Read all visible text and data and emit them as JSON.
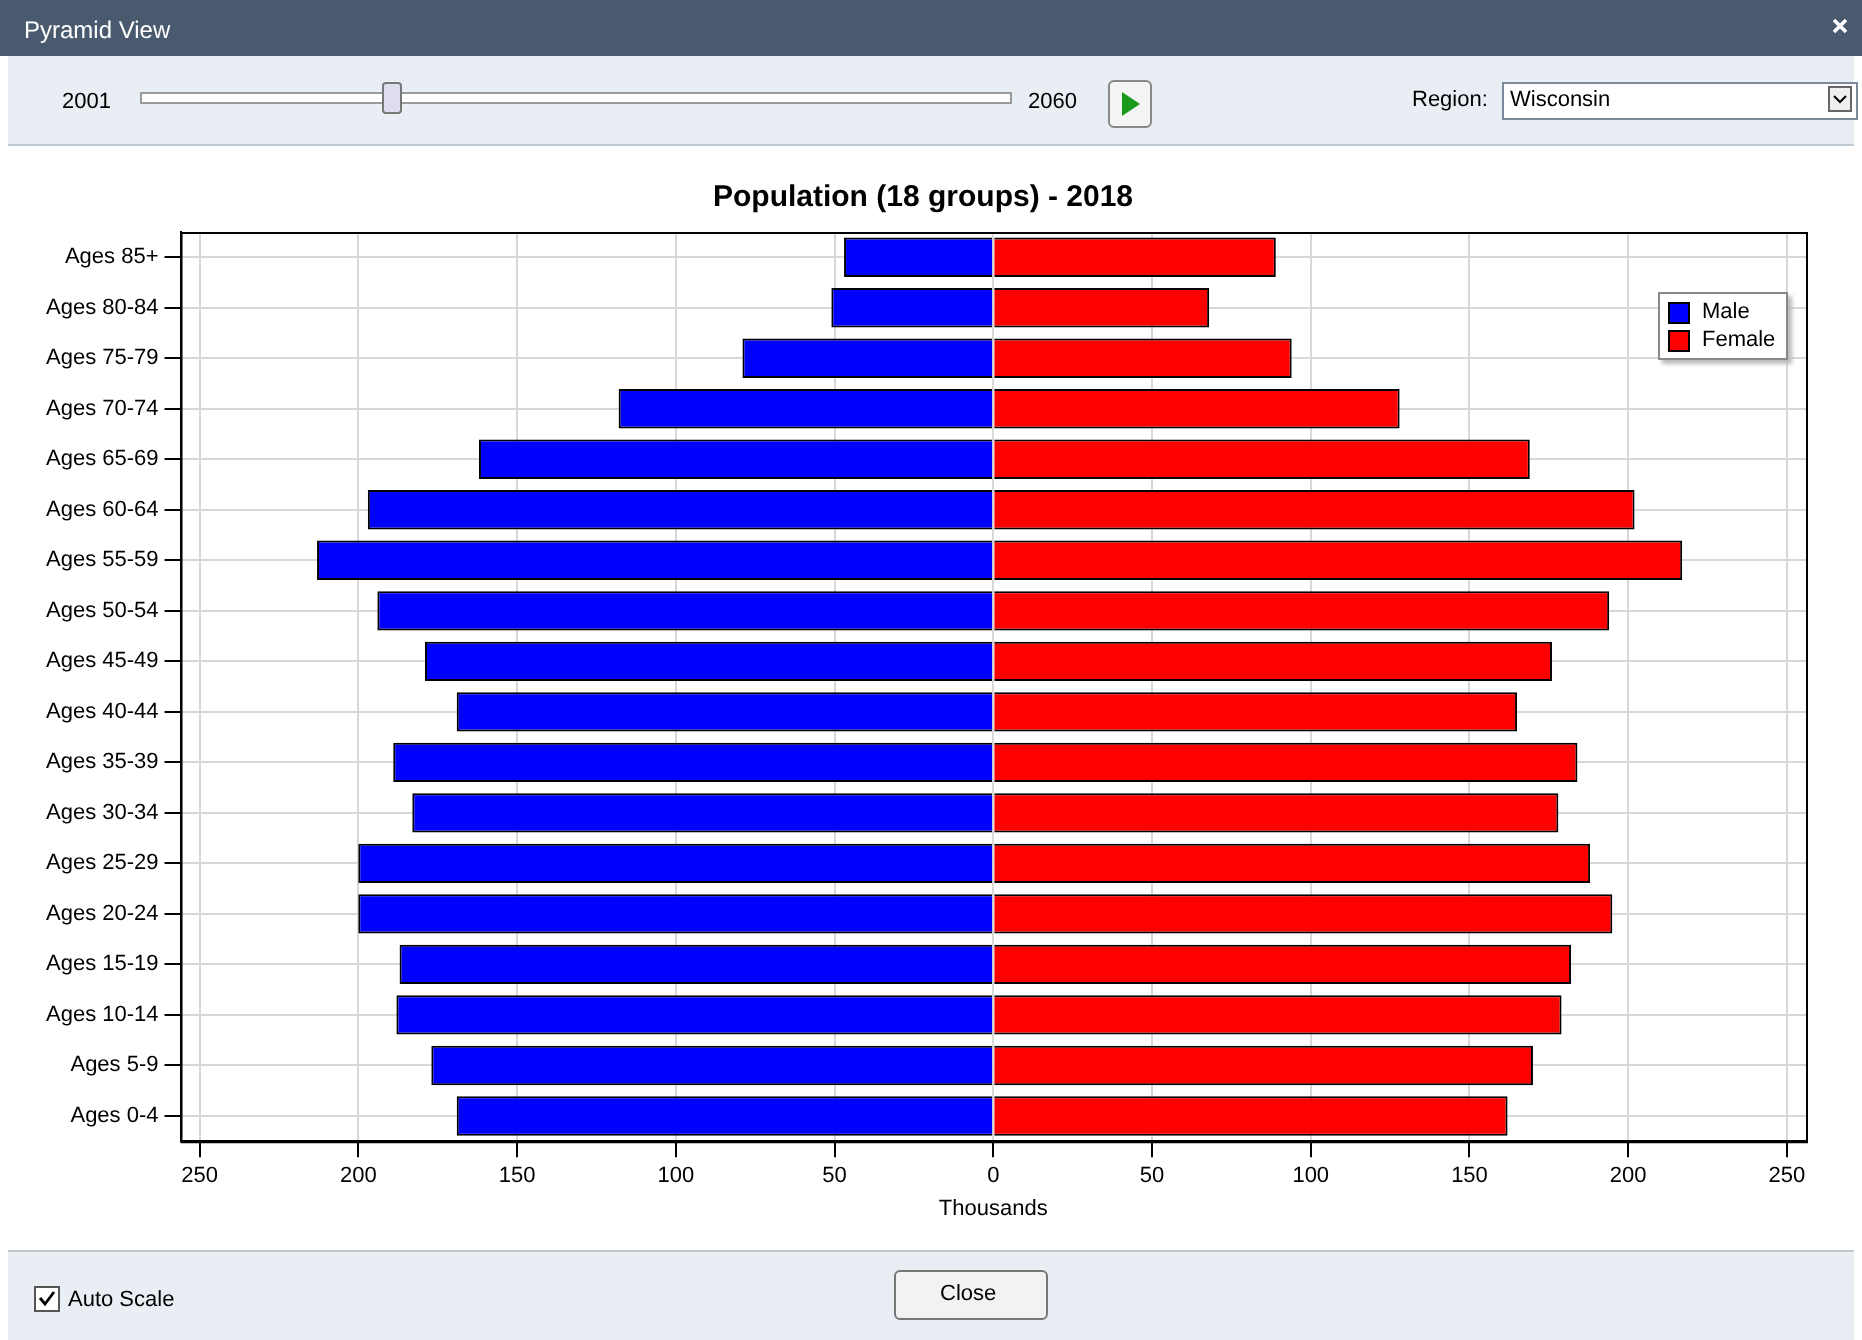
{
  "chart_data": {
    "type": "bar",
    "orientation": "horizontal",
    "stacked": true,
    "title": "Population (18 groups) - 2018",
    "xlabel": "Thousands",
    "categories": [
      "Ages 85+",
      "Ages 80-84",
      "Ages 75-79",
      "Ages 70-74",
      "Ages 65-69",
      "Ages 60-64",
      "Ages 55-59",
      "Ages 50-54",
      "Ages 45-49",
      "Ages 40-44",
      "Ages 35-39",
      "Ages 30-34",
      "Ages 25-29",
      "Ages 20-24",
      "Ages 15-19",
      "Ages 10-14",
      "Ages 5-9",
      "Ages 0-4"
    ],
    "series": [
      {
        "name": "Male",
        "color": "#0000ff",
        "values": [
          -47,
          -51,
          -79,
          -118,
          -162,
          -197,
          -213,
          -194,
          -179,
          -169,
          -189,
          -183,
          -200,
          -200,
          -187,
          -188,
          -177,
          -169
        ]
      },
      {
        "name": "Female",
        "color": "#ff0000",
        "values": [
          89,
          68,
          94,
          128,
          169,
          202,
          217,
          194,
          176,
          165,
          184,
          178,
          188,
          195,
          182,
          179,
          170,
          162
        ]
      }
    ],
    "xlim": [
      -256,
      256
    ],
    "xticks": [
      {
        "value": -250,
        "label": "250"
      },
      {
        "value": -200,
        "label": "200"
      },
      {
        "value": -150,
        "label": "150"
      },
      {
        "value": -100,
        "label": "100"
      },
      {
        "value": -50,
        "label": "50"
      },
      0,
      50,
      100,
      150,
      200,
      250
    ],
    "grid": true,
    "legend": "top right",
    "annotations": [
      "Pyramid View",
      "2001",
      "2060",
      "Region:",
      "Wisconsin",
      "Auto Scale",
      "Close"
    ]
  }
}
